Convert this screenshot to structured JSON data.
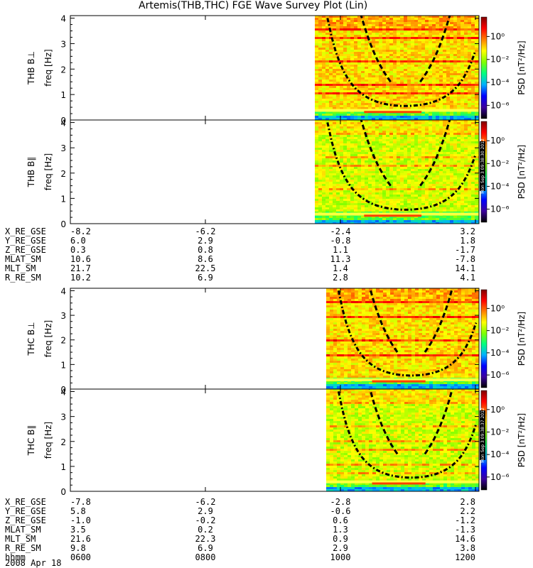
{
  "title": "Artemis(THB,THC) FGE Wave Survey Plot (Lin)",
  "panels": [
    {
      "label": "THB B⊥",
      "ylabel": "freq [Hz]",
      "yticks": [
        "0",
        "1",
        "2",
        "3",
        "4"
      ],
      "colorbar_label": "PSD [nT²/Hz]",
      "side_text": ""
    },
    {
      "label": "THB B∥",
      "ylabel": "freq [Hz]",
      "yticks": [
        "0",
        "1",
        "2",
        "3",
        "4"
      ],
      "colorbar_label": "PSD [nT²/Hz]",
      "side_text": "Mon Sep 3 09:38:30 2012"
    },
    {
      "label": "THC B⊥",
      "ylabel": "freq [Hz]",
      "yticks": [
        "0",
        "1",
        "2",
        "3",
        "4"
      ],
      "colorbar_label": "PSD [nT²/Hz]",
      "side_text": ""
    },
    {
      "label": "THC B∥",
      "ylabel": "freq [Hz]",
      "yticks": [
        "0",
        "1",
        "2",
        "3",
        "4"
      ],
      "colorbar_label": "PSD [nT²/Hz]",
      "side_text": "Mon Sep 3 09:38:37 2012"
    }
  ],
  "colorbar_ticks": [
    "10⁰",
    "10⁻²",
    "10⁻⁴",
    "10⁻⁶"
  ],
  "ephemeris_thb": [
    {
      "name": "X_RE_GSE",
      "values": [
        "-8.2",
        "-6.2",
        "-2.4",
        "3.2"
      ]
    },
    {
      "name": "Y_RE_GSE",
      "values": [
        "6.0",
        "2.9",
        "-0.8",
        "1.8"
      ]
    },
    {
      "name": "Z_RE_GSE",
      "values": [
        "0.3",
        "0.8",
        "1.1",
        "-1.7"
      ]
    },
    {
      "name": "MLAT_SM",
      "values": [
        "10.6",
        "8.6",
        "11.3",
        "-7.8"
      ]
    },
    {
      "name": "MLT_SM",
      "values": [
        "21.7",
        "22.5",
        "1.4",
        "14.1"
      ]
    },
    {
      "name": "R_RE_SM",
      "values": [
        "10.2",
        "6.9",
        "2.8",
        "4.1"
      ]
    }
  ],
  "ephemeris_thc": [
    {
      "name": "X_RE_GSE",
      "values": [
        "-7.8",
        "-6.2",
        "-2.8",
        "2.8"
      ]
    },
    {
      "name": "Y_RE_GSE",
      "values": [
        "5.8",
        "2.9",
        "-0.6",
        "2.2"
      ]
    },
    {
      "name": "Z_RE_GSE",
      "values": [
        "-1.0",
        "-0.2",
        "0.6",
        "-1.2"
      ]
    },
    {
      "name": "MLAT_SM",
      "values": [
        "3.5",
        "0.2",
        "1.3",
        "-1.3"
      ]
    },
    {
      "name": "MLT_SM",
      "values": [
        "21.6",
        "22.3",
        "0.9",
        "14.6"
      ]
    },
    {
      "name": "R_RE_SM",
      "values": [
        "9.8",
        "6.9",
        "2.9",
        "3.8"
      ]
    },
    {
      "name": "hhmm",
      "values": [
        "0600",
        "0800",
        "1000",
        "1200"
      ]
    }
  ],
  "date_label": "2008 Apr 18",
  "colors": {
    "background": "#ffffff",
    "curve": "#000000",
    "colormap": [
      "#000000",
      "#3c00a0",
      "#0000ff",
      "#00b0ff",
      "#00ff80",
      "#80ff00",
      "#ffff00",
      "#ff8000",
      "#ff0000",
      "#800000"
    ]
  },
  "chart_data": {
    "type": "heatmap",
    "title": "Artemis(THB,THC) FGE Wave Survey Plot (Lin)",
    "x_axis": {
      "label": "hhmm",
      "ticks": [
        "0600",
        "0800",
        "1000",
        "1200"
      ],
      "date": "2008 Apr 18"
    },
    "y_axis": {
      "label": "freq [Hz]",
      "range": [
        0,
        4
      ],
      "ticks": [
        0,
        1,
        2,
        3,
        4
      ]
    },
    "colorbar": {
      "label": "PSD [nT²/Hz]",
      "scale": "log",
      "range": [
        1e-07,
        10.0
      ],
      "ticks": [
        "1e0",
        "1e-2",
        "1e-4",
        "1e-6"
      ]
    },
    "panels": [
      {
        "name": "THB B⊥",
        "data_start_hhmm": "0935",
        "data_end_hhmm": "1200"
      },
      {
        "name": "THB B∥",
        "data_start_hhmm": "0935",
        "data_end_hhmm": "1200"
      },
      {
        "name": "THC B⊥",
        "data_start_hhmm": "0938",
        "data_end_hhmm": "1200"
      },
      {
        "name": "THC B∥",
        "data_start_hhmm": "0938",
        "data_end_hhmm": "1200"
      }
    ]
  }
}
